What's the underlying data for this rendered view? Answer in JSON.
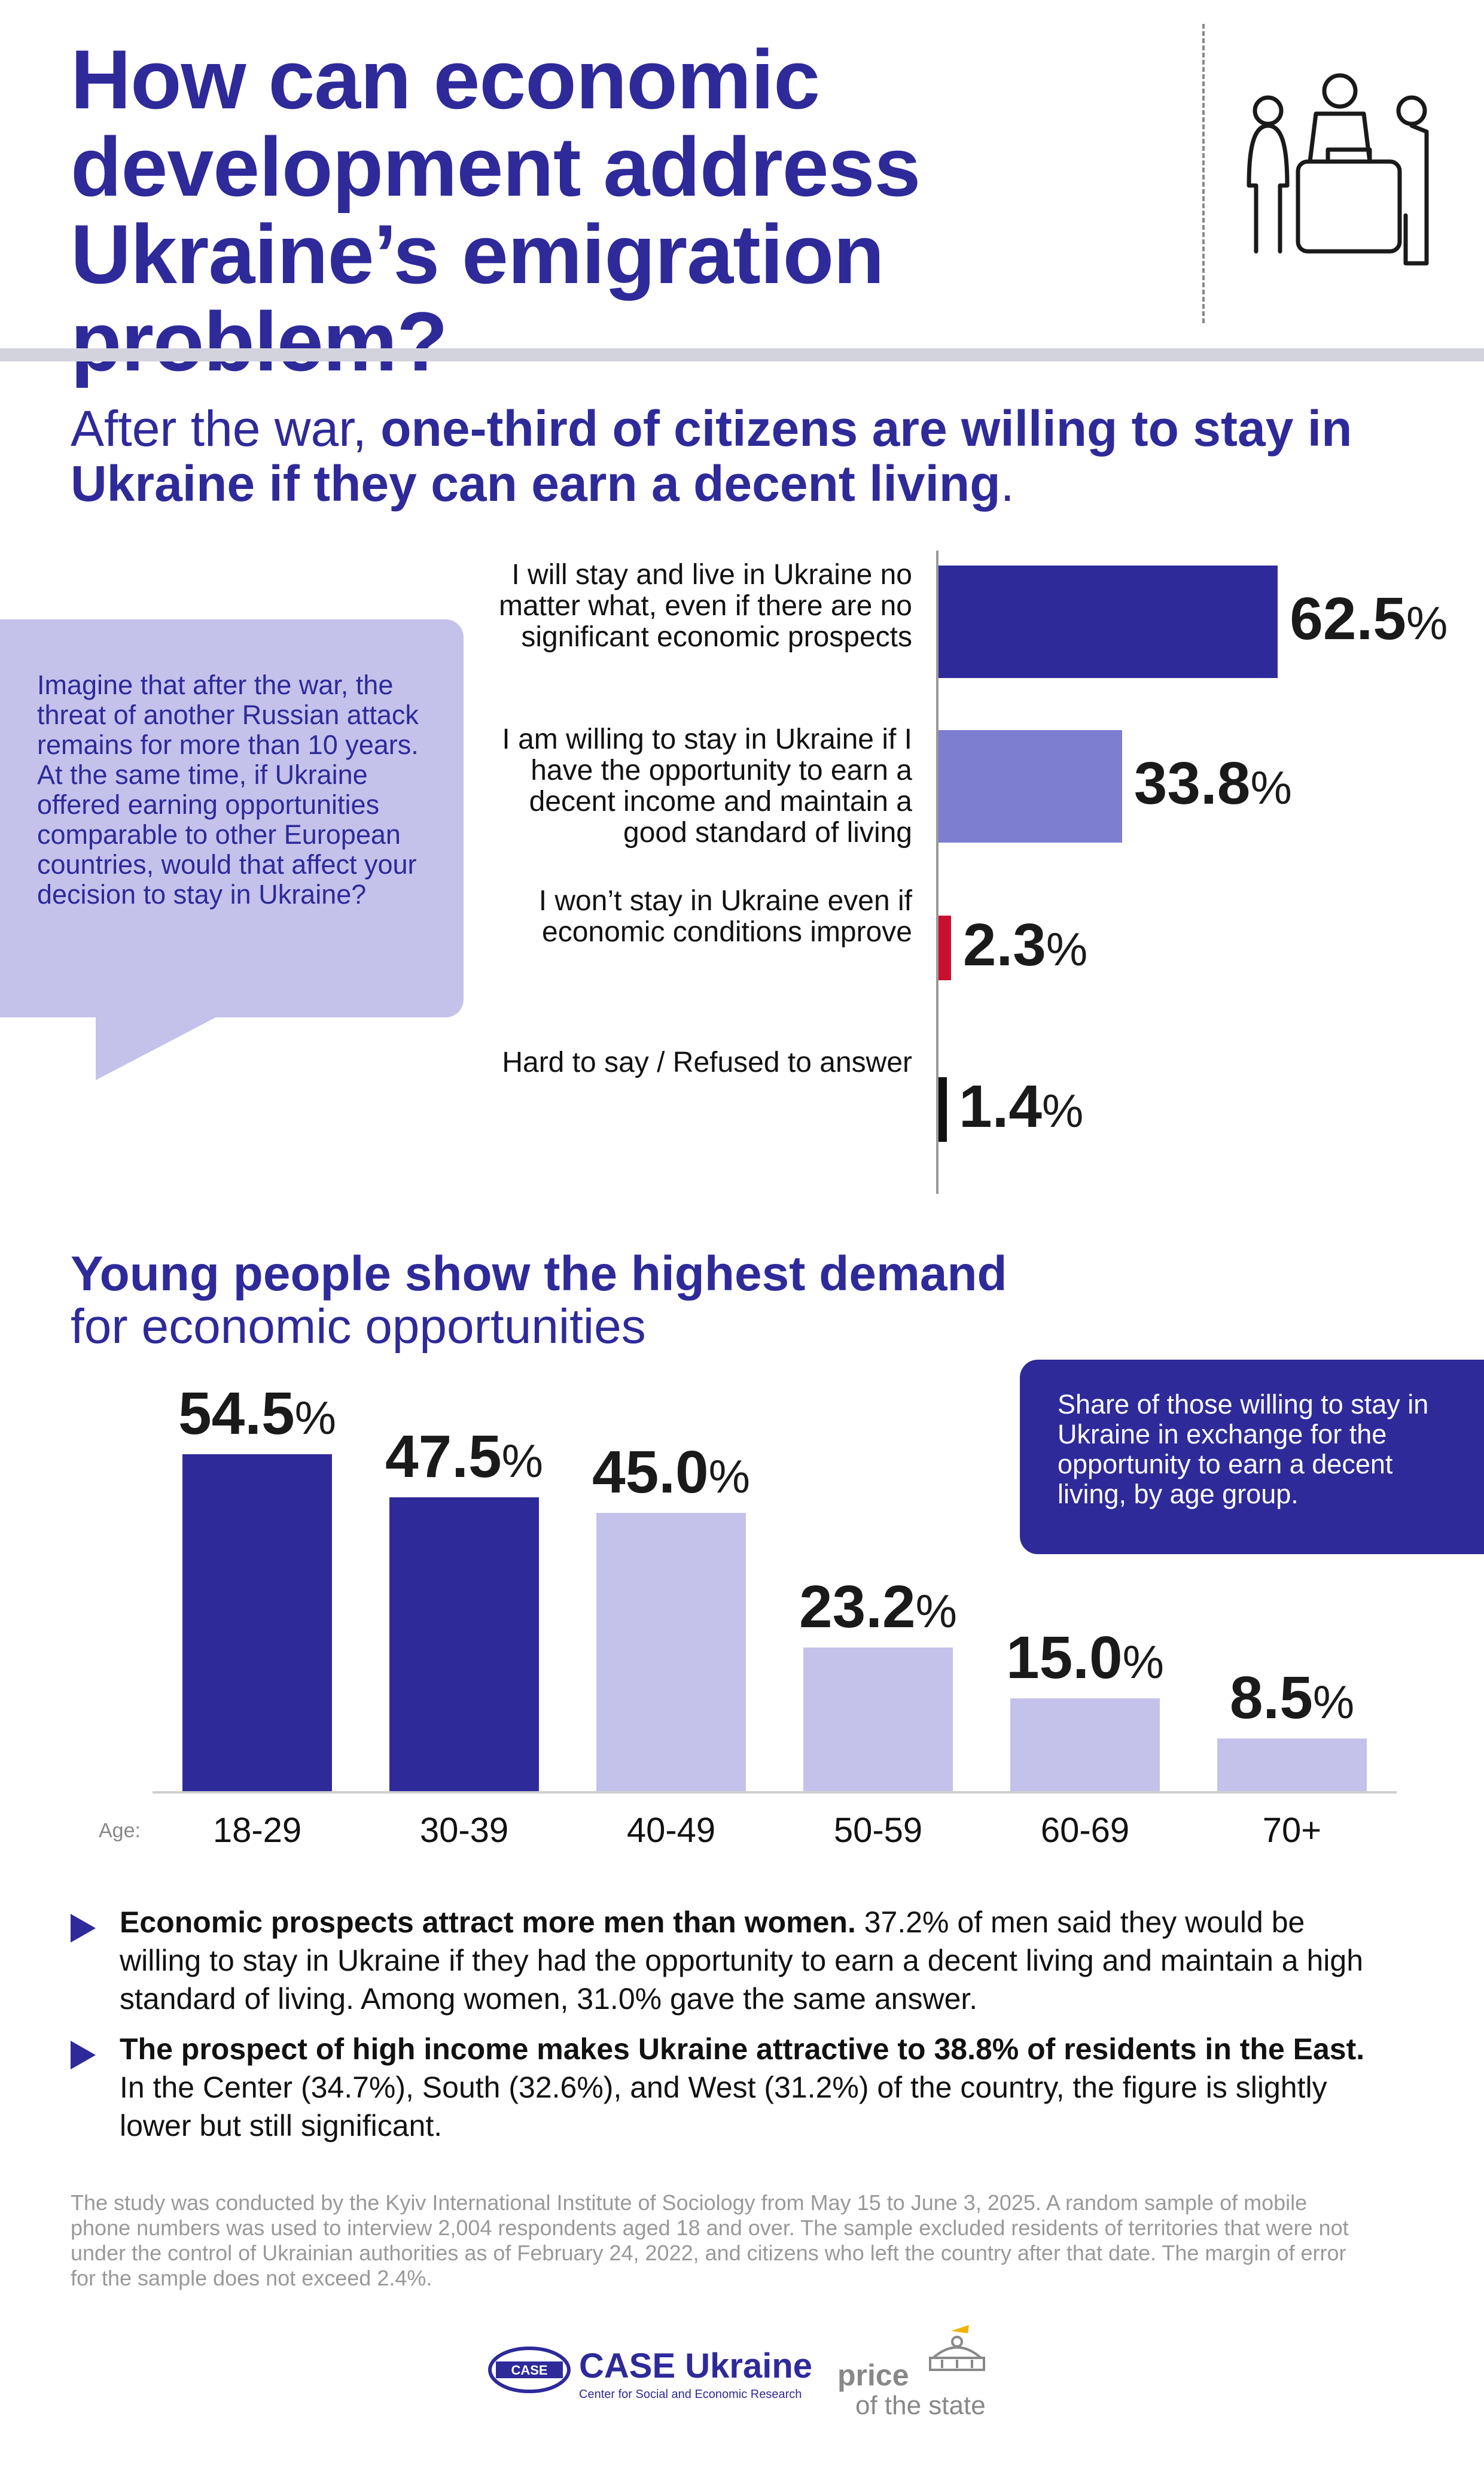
{
  "header": {
    "title": "How can economic development address Ukraine’s emigration problem?",
    "icon": "people-with-suitcase-icon"
  },
  "section1": {
    "subtitle_prefix": "After the war, ",
    "subtitle_bold": "one-third of citizens are willing to stay in Ukraine if they can earn a decent living",
    "subtitle_suffix": ".",
    "question": "Imagine that after the war, the threat of another Russian attack remains for more than 10 years. At the same time, if Ukraine offered earning opportunities comparable to other European countries, would that affect your decision to stay in Ukraine?"
  },
  "section2": {
    "subtitle_bold": "Young people show the highest demand",
    "subtitle_rest": "for economic opportunities",
    "note": "Share of those willing to stay in Ukraine in exchange for the opportunity to earn a decent living, by age group.",
    "age_caption": "Age:"
  },
  "chart_data": [
    {
      "type": "bar",
      "orientation": "horizontal",
      "categories": [
        "I will stay and live in Ukraine no matter what, even if there are no significant economic prospects",
        "I am willing to stay in Ukraine if I have the opportunity to earn a decent income and maintain a good standard of living",
        "I won’t stay in Ukraine even if economic conditions improve",
        "Hard to say / Refused to answer"
      ],
      "values": [
        62.5,
        33.8,
        2.3,
        1.4
      ],
      "value_labels": [
        "62.5",
        "33.8",
        "2.3",
        "1.4"
      ],
      "unit": "%",
      "colors": [
        "#2e2a9a",
        "#7d7ed0",
        "#c8102e",
        "#111111"
      ],
      "xlim": [
        0,
        65
      ]
    },
    {
      "type": "bar",
      "orientation": "vertical",
      "categories": [
        "18-29",
        "30-39",
        "40-49",
        "50-59",
        "60-69",
        "70+"
      ],
      "values": [
        54.5,
        47.5,
        45.0,
        23.2,
        15.0,
        8.5
      ],
      "value_labels": [
        "54.5",
        "47.5",
        "45.0",
        "23.2",
        "15.0",
        "8.5"
      ],
      "unit": "%",
      "colors": [
        "#2e2a9a",
        "#2e2a9a",
        "#c4c2ea",
        "#c4c2ea",
        "#c4c2ea",
        "#c4c2ea"
      ],
      "ylim": [
        0,
        60
      ]
    }
  ],
  "bullets": [
    {
      "bold": "Economic prospects attract more men than women.",
      "text": " 37.2% of men said they would be willing to stay in Ukraine if they had the opportunity to earn a decent living and maintain a high standard of living. Among women, 31.0% gave the same answer."
    },
    {
      "bold": "The prospect of high income makes Ukraine attractive to 38.8% of residents in the East.",
      "text": " In the Center (34.7%), South (32.6%), and West (31.2%) of the country, the figure is slightly lower but still significant."
    }
  ],
  "footnote": "The study was conducted by the Kyiv International Institute of Sociology from May 15 to June 3, 2025. A random sample of mobile phone numbers was used to interview 2,004 respondents aged 18 and over. The sample excluded residents of territories that were not under the control of Ukrainian authorities as of February 24, 2022, and citizens who left the country after that date. The margin of error for the sample does not exceed 2.4%.",
  "logos": {
    "case_badge": "CASE",
    "case_name": "CASE Ukraine",
    "case_sub": "Center for Social and Economic Research",
    "pos_line1": "price",
    "pos_line2": "of the state"
  }
}
